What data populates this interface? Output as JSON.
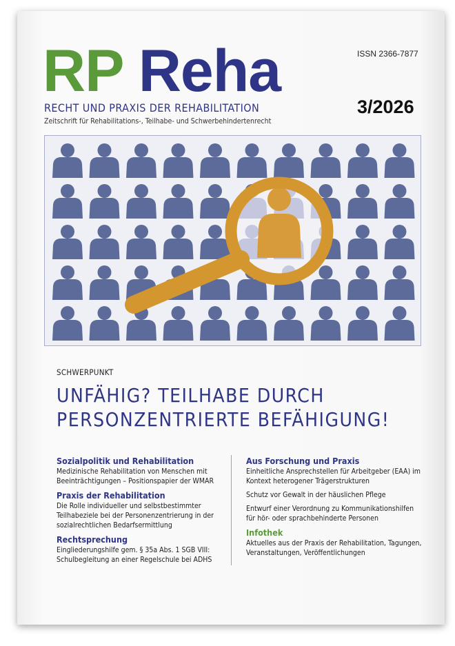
{
  "masthead": {
    "logo_rp": "RP",
    "logo_reha": "Reha",
    "subtitle": "RECHT UND PRAXIS DER REHABILITATION",
    "tagline": "Zeitschrift für Rehabilitations-, Teilhabe- und Schwerbehindertenrecht",
    "issn": "ISSN 2366-7877",
    "issue": "3/2026"
  },
  "focus": {
    "kicker": "SCHWERPUNKT",
    "headline": [
      "UNFÄHIG? TEILHABE DURCH",
      "PERSONZENTRIERTE BEFÄHIGUNG!"
    ]
  },
  "contents": {
    "left": [
      {
        "heading": "Sozialpolitik und Rehabilitation",
        "items": [
          "Medizinische Rehabilitation von Menschen mit Beeinträchtigungen – Positionspapier der WMAR"
        ]
      },
      {
        "heading": "Praxis der Rehabilitation",
        "items": [
          "Die Rolle individueller und selbstbestimmter Teilhabeziele bei der Personenzentrierung in der sozialrechtlichen Bedarfsermittlung"
        ]
      },
      {
        "heading": "Rechtsprechung",
        "items": [
          "Eingliederungshilfe gem. § 35a Abs. 1 SGB VIII: Schulbegleitung an einer Regelschule bei ADHS"
        ]
      }
    ],
    "right": [
      {
        "heading": "Aus Forschung und Praxis",
        "items": [
          "Einheitliche Ansprechstellen für Arbeitgeber (EAA) im Kontext heterogener Trägerstrukturen",
          "Schutz vor Gewalt in der häuslichen Pflege",
          "Entwurf einer Verordnung zu Kommunikationshilfen für hör- oder sprachbehinderte Personen"
        ]
      },
      {
        "heading": "Infothek",
        "items": [
          "Aktuelles aus der Praxis der Rehabilitation, Tagungen, Veranstaltungen, Veröffentlichungen"
        ]
      }
    ]
  }
}
